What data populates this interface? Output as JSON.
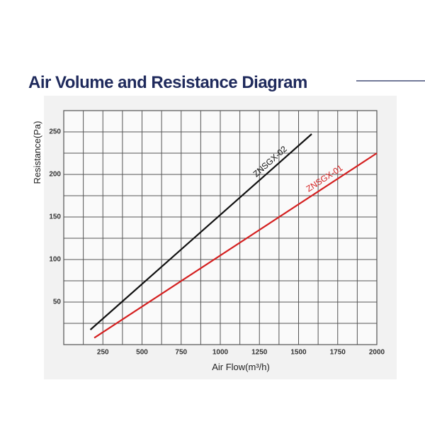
{
  "chart_data": {
    "type": "line",
    "title": "Air Volume and Resistance Diagram",
    "x_label": "Air Flow(m³/h)",
    "y_label": "Resistance(Pa)",
    "xlim": [
      0,
      2000
    ],
    "ylim": [
      0,
      275
    ],
    "xticks": [
      250,
      500,
      750,
      1000,
      1250,
      1500,
      1750,
      2000
    ],
    "yticks": [
      50,
      100,
      150,
      200,
      250
    ],
    "xgrid": [
      0,
      125,
      250,
      375,
      500,
      625,
      750,
      875,
      1000,
      1125,
      1250,
      1375,
      1500,
      1625,
      1750,
      1875,
      2000
    ],
    "ygrid": [
      0,
      25,
      50,
      75,
      100,
      125,
      150,
      175,
      200,
      225,
      250,
      275
    ],
    "series": [
      {
        "name": "ZNSGX-02",
        "color": "#111111",
        "x": [
          170,
          1584
        ],
        "values": [
          17.5,
          247.5
        ]
      },
      {
        "name": "ZNSGX-01",
        "color": "#d42020",
        "x": [
          195,
          2000
        ],
        "values": [
          8,
          225
        ]
      }
    ]
  }
}
